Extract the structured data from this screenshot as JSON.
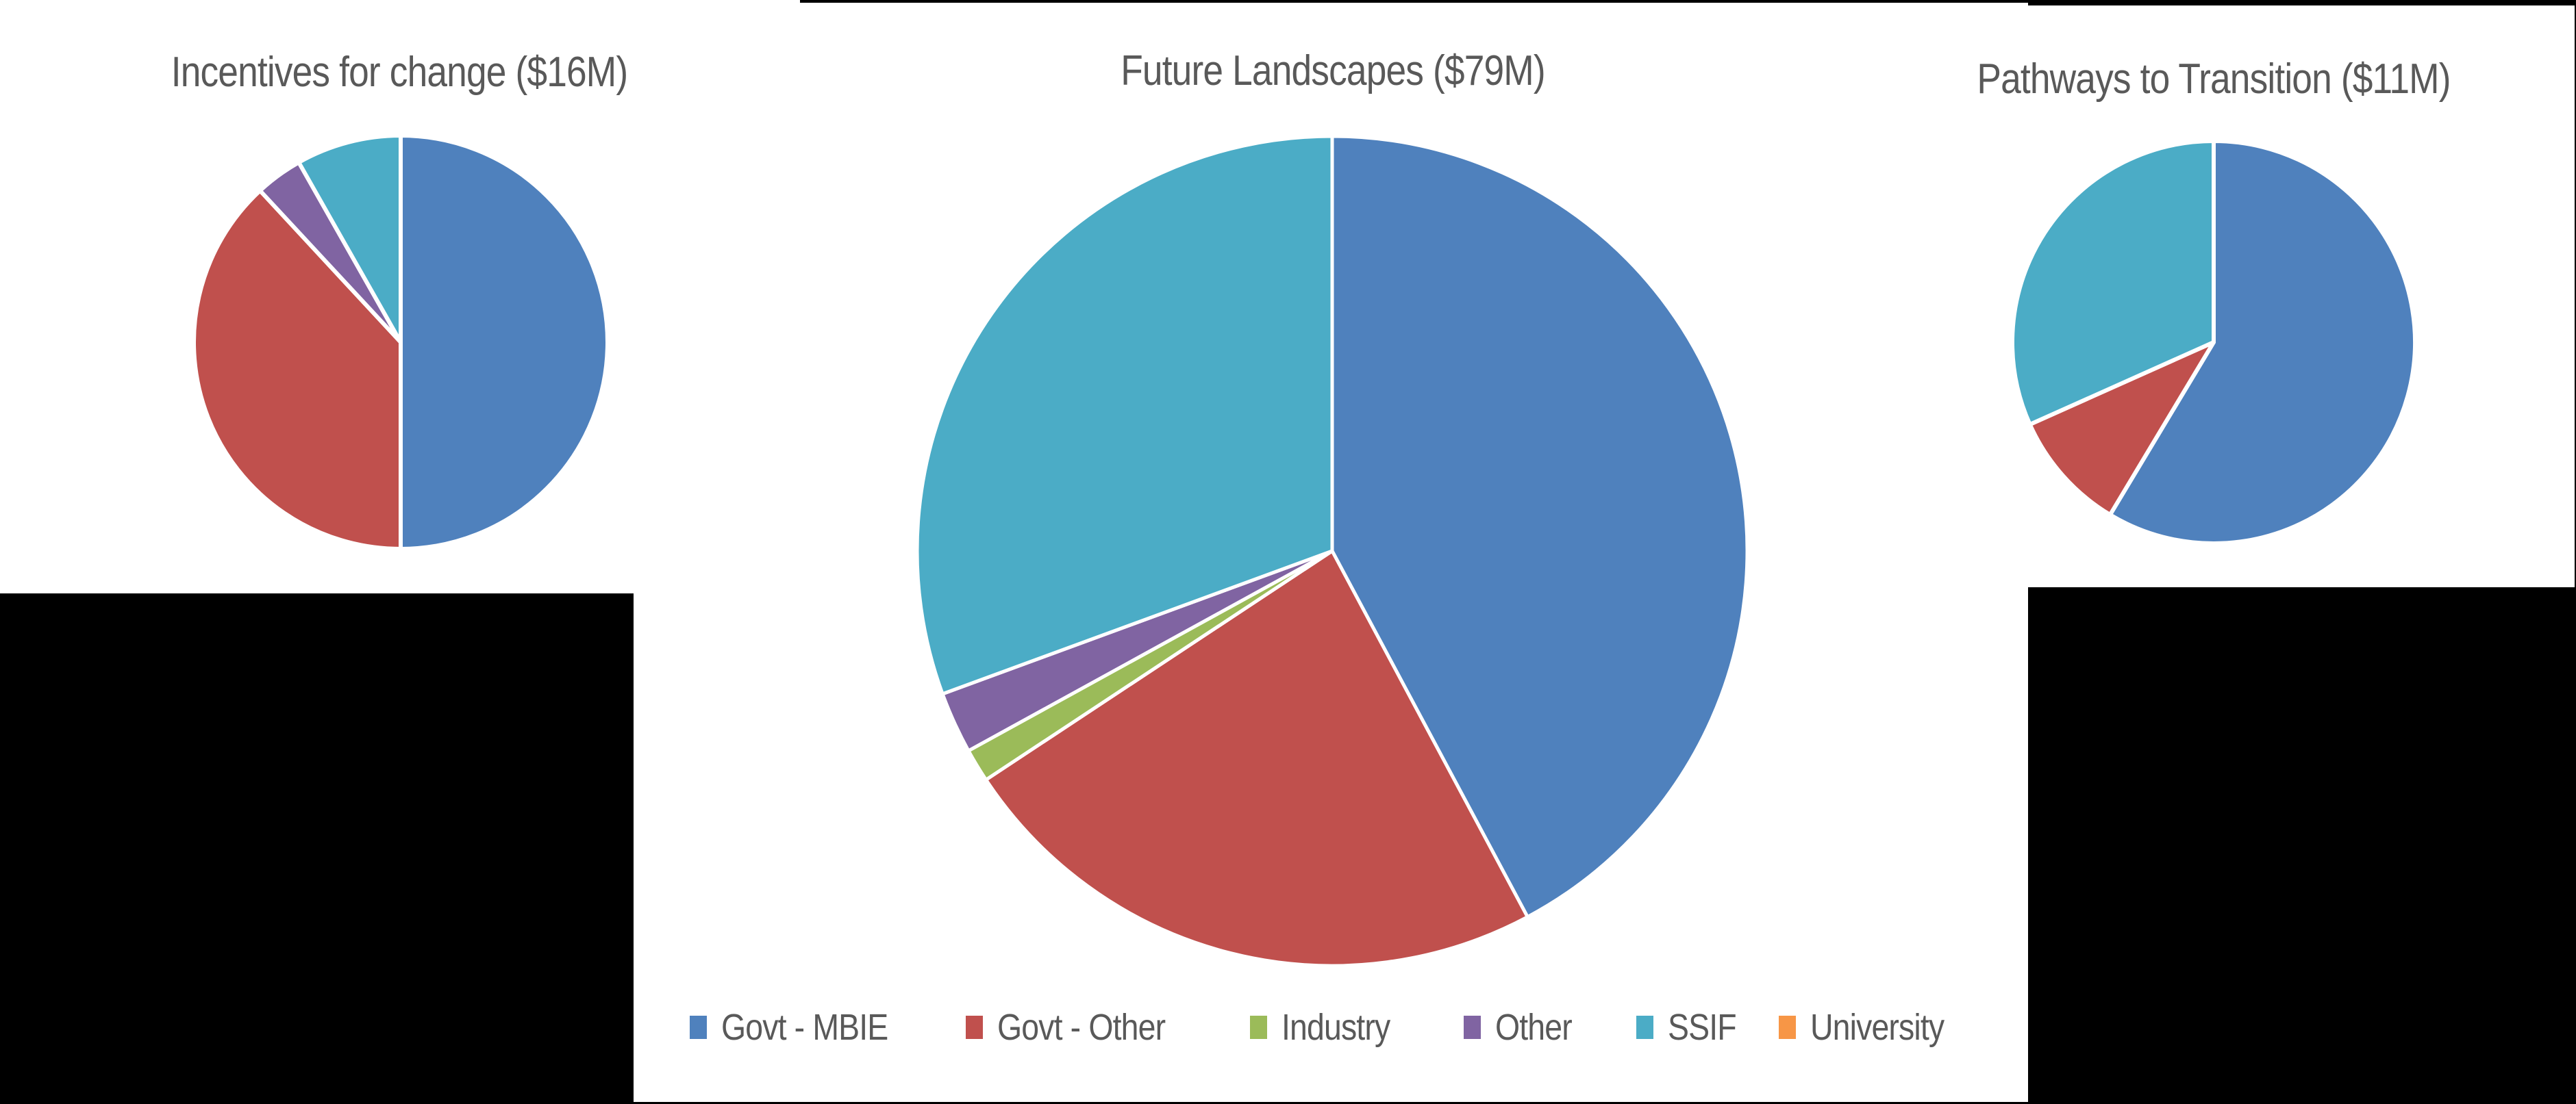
{
  "legend": {
    "items": [
      {
        "label": "Govt - MBIE",
        "color": "#4F81BD"
      },
      {
        "label": "Govt - Other",
        "color": "#C0504D"
      },
      {
        "label": "Industry",
        "color": "#9BBB59"
      },
      {
        "label": "Other",
        "color": "#8064A2"
      },
      {
        "label": "SSIF",
        "color": "#4BACC6"
      },
      {
        "label": "University",
        "color": "#F79646"
      }
    ]
  },
  "chart_data": [
    {
      "type": "pie",
      "title": "Incentives for change ($16M)",
      "total_label": "$16M",
      "categories": [
        "Govt - MBIE",
        "Govt - Other",
        "Industry",
        "Other",
        "SSIF",
        "University"
      ],
      "values_percent": [
        50.0,
        38.1,
        0.0,
        3.7,
        8.2,
        0.0
      ],
      "colors": [
        "#4F81BD",
        "#C0504D",
        "#9BBB59",
        "#8064A2",
        "#4BACC6",
        "#F79646"
      ],
      "center": [
        585,
        500
      ],
      "radius": 302
    },
    {
      "type": "pie",
      "title": "Future Landscapes ($79M)",
      "total_label": "$79M",
      "categories": [
        "Govt - MBIE",
        "Govt - Other",
        "Industry",
        "Other",
        "SSIF",
        "University"
      ],
      "values_percent": [
        42.2,
        23.5,
        1.3,
        2.4,
        30.6,
        0.0
      ],
      "colors": [
        "#4F81BD",
        "#C0504D",
        "#9BBB59",
        "#8064A2",
        "#4BACC6",
        "#F79646"
      ],
      "center": [
        1945,
        805
      ],
      "radius": 606
    },
    {
      "type": "pie",
      "title": "Pathways to Transition ($11M)",
      "total_label": "$11M",
      "categories": [
        "Govt - MBIE",
        "Govt - Other",
        "Industry",
        "Other",
        "SSIF",
        "University"
      ],
      "values_percent": [
        58.6,
        9.7,
        0.0,
        0.0,
        31.7,
        0.0
      ],
      "colors": [
        "#4F81BD",
        "#C0504D",
        "#9BBB59",
        "#8064A2",
        "#4BACC6",
        "#F79646"
      ],
      "center": [
        3232,
        500
      ],
      "radius": 294
    }
  ]
}
